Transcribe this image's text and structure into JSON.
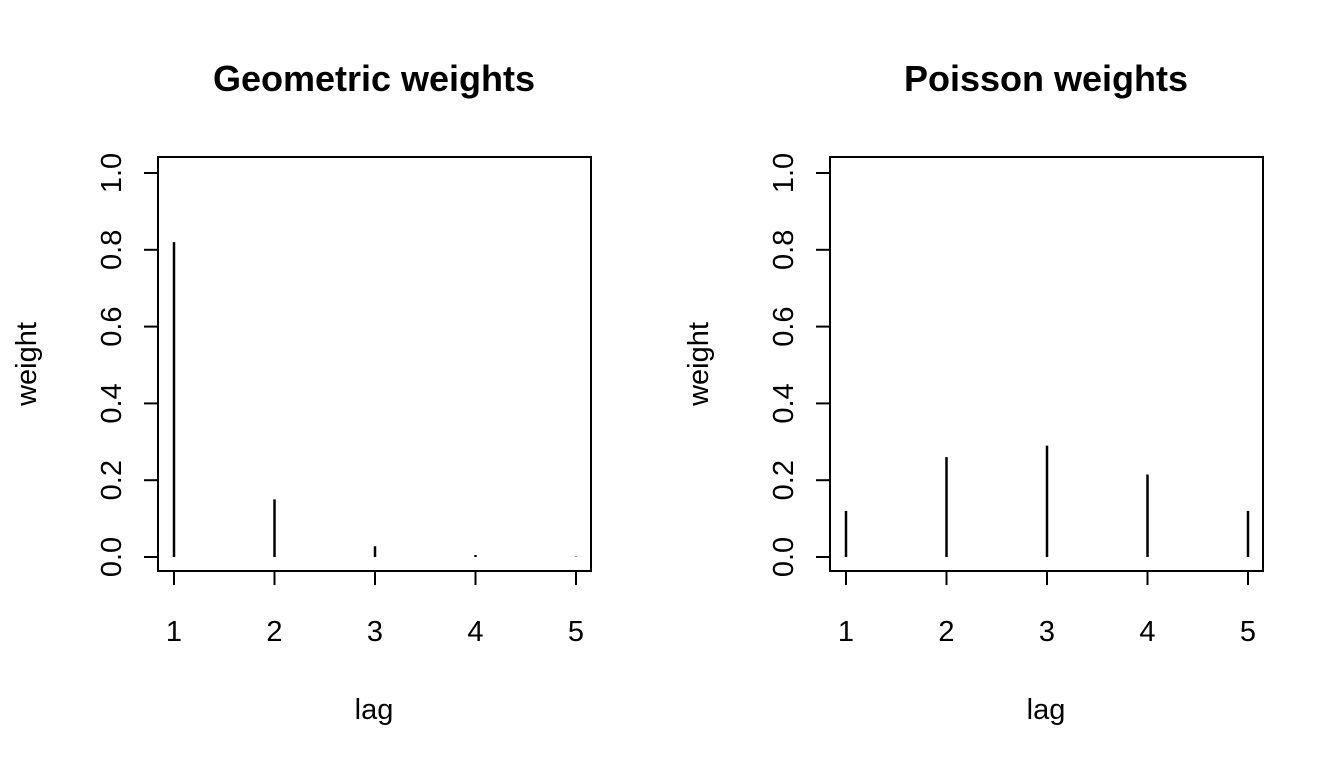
{
  "chart_data": [
    {
      "type": "bar",
      "title": "Geometric weights",
      "xlabel": "lag",
      "ylabel": "weight",
      "x": [
        1,
        2,
        3,
        4,
        5
      ],
      "x_tick_labels": [
        "1",
        "2",
        "3",
        "4",
        "5"
      ],
      "values": [
        0.82,
        0.15,
        0.028,
        0.005,
        0.001
      ],
      "ylim": [
        0,
        1
      ],
      "y_ticks": [
        0,
        0.2,
        0.4,
        0.6,
        0.8,
        1.0
      ],
      "y_tick_labels": [
        "0.0",
        "0.2",
        "0.4",
        "0.6",
        "0.8",
        "1.0"
      ],
      "grid": false,
      "bar_style": "vertical lines (histogram-type spikes)"
    },
    {
      "type": "bar",
      "title": "Poisson weights",
      "xlabel": "lag",
      "ylabel": "weight",
      "x": [
        1,
        2,
        3,
        4,
        5
      ],
      "x_tick_labels": [
        "1",
        "2",
        "3",
        "4",
        "5"
      ],
      "values": [
        0.12,
        0.26,
        0.29,
        0.215,
        0.12
      ],
      "ylim": [
        0,
        1
      ],
      "y_ticks": [
        0,
        0.2,
        0.4,
        0.6,
        0.8,
        1.0
      ],
      "y_tick_labels": [
        "0.0",
        "0.2",
        "0.4",
        "0.6",
        "0.8",
        "1.0"
      ],
      "grid": false,
      "bar_style": "vertical lines (histogram-type spikes)"
    }
  ]
}
